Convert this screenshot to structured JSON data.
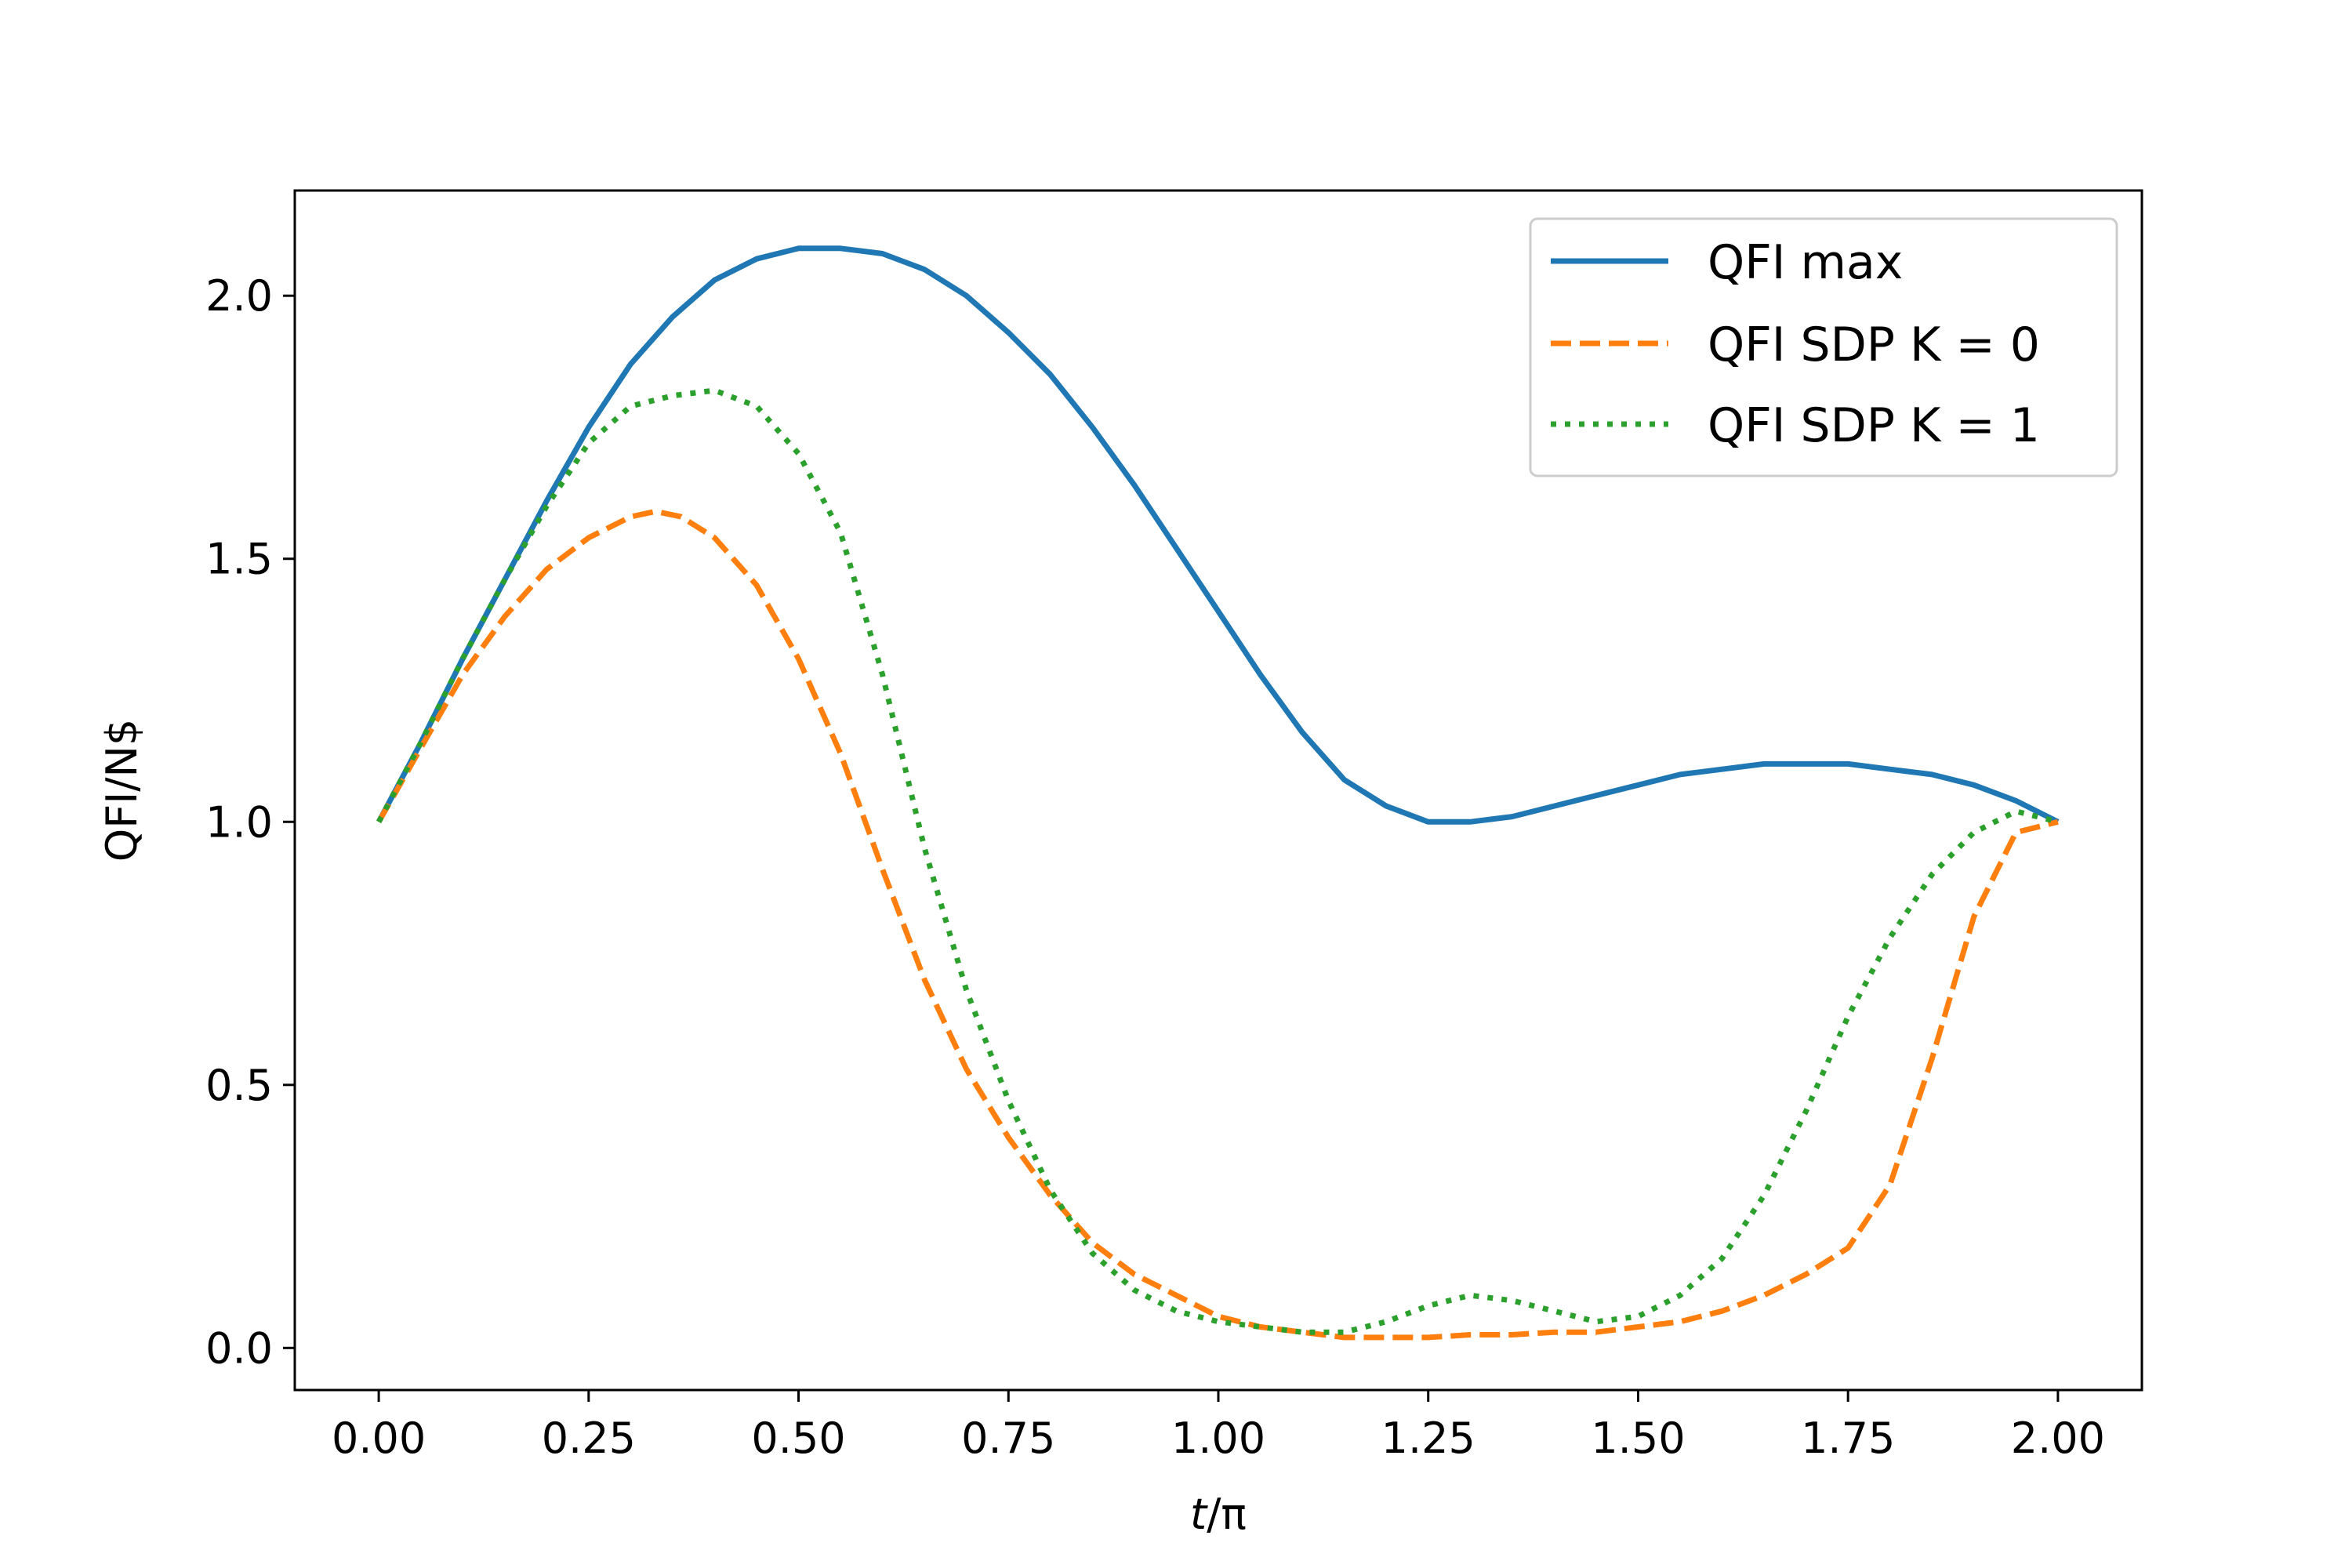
{
  "chart_data": {
    "type": "line",
    "title": "",
    "xlabel_var": "t",
    "xlabel_rest": "/π",
    "ylabel": "QFI/N$",
    "xlim": [
      -0.1,
      2.1
    ],
    "ylim": [
      -0.08,
      2.2
    ],
    "xticks": [
      0.0,
      0.25,
      0.5,
      0.75,
      1.0,
      1.25,
      1.5,
      1.75,
      2.0
    ],
    "xtick_labels": [
      "0.00",
      "0.25",
      "0.50",
      "0.75",
      "1.00",
      "1.25",
      "1.50",
      "1.75",
      "2.00"
    ],
    "yticks": [
      0.0,
      0.5,
      1.0,
      1.5,
      2.0
    ],
    "ytick_labels": [
      "0.0",
      "0.5",
      "1.0",
      "1.5",
      "2.0"
    ],
    "legend_position": "top-right",
    "series": [
      {
        "name": "QFI max",
        "color": "#1f77b4",
        "style": "solid",
        "x": [
          0.0,
          0.05,
          0.1,
          0.15,
          0.2,
          0.25,
          0.3,
          0.35,
          0.4,
          0.45,
          0.5,
          0.55,
          0.6,
          0.65,
          0.7,
          0.75,
          0.8,
          0.85,
          0.9,
          0.95,
          1.0,
          1.05,
          1.1,
          1.15,
          1.2,
          1.25,
          1.3,
          1.35,
          1.4,
          1.45,
          1.5,
          1.55,
          1.6,
          1.65,
          1.7,
          1.75,
          1.8,
          1.85,
          1.9,
          1.95,
          2.0
        ],
        "values": [
          1.0,
          1.15,
          1.31,
          1.46,
          1.61,
          1.75,
          1.87,
          1.96,
          2.03,
          2.07,
          2.09,
          2.09,
          2.08,
          2.05,
          2.0,
          1.93,
          1.85,
          1.75,
          1.64,
          1.52,
          1.4,
          1.28,
          1.17,
          1.08,
          1.03,
          1.0,
          1.0,
          1.01,
          1.03,
          1.05,
          1.07,
          1.09,
          1.1,
          1.11,
          1.11,
          1.11,
          1.1,
          1.09,
          1.07,
          1.04,
          1.0
        ]
      },
      {
        "name": "QFI SDP K = 0",
        "color": "#ff7f0e",
        "style": "dashed",
        "x": [
          0.0,
          0.05,
          0.1,
          0.15,
          0.2,
          0.25,
          0.3,
          0.33,
          0.36,
          0.4,
          0.45,
          0.5,
          0.55,
          0.6,
          0.65,
          0.7,
          0.75,
          0.8,
          0.85,
          0.9,
          0.95,
          1.0,
          1.05,
          1.1,
          1.15,
          1.2,
          1.25,
          1.3,
          1.35,
          1.4,
          1.45,
          1.5,
          1.55,
          1.6,
          1.65,
          1.7,
          1.75,
          1.8,
          1.85,
          1.9,
          1.95,
          2.0
        ],
        "values": [
          1.0,
          1.14,
          1.28,
          1.39,
          1.48,
          1.54,
          1.58,
          1.59,
          1.58,
          1.54,
          1.45,
          1.31,
          1.13,
          0.91,
          0.7,
          0.53,
          0.4,
          0.29,
          0.2,
          0.14,
          0.1,
          0.06,
          0.04,
          0.03,
          0.02,
          0.02,
          0.02,
          0.025,
          0.025,
          0.03,
          0.03,
          0.04,
          0.05,
          0.07,
          0.1,
          0.14,
          0.19,
          0.31,
          0.55,
          0.82,
          0.98,
          1.0
        ]
      },
      {
        "name": "QFI SDP K = 1",
        "color": "#2ca02c",
        "style": "dotted",
        "x": [
          0.0,
          0.05,
          0.1,
          0.15,
          0.2,
          0.25,
          0.3,
          0.35,
          0.4,
          0.45,
          0.5,
          0.55,
          0.6,
          0.65,
          0.7,
          0.75,
          0.8,
          0.85,
          0.9,
          0.95,
          1.0,
          1.05,
          1.1,
          1.15,
          1.2,
          1.25,
          1.3,
          1.35,
          1.4,
          1.45,
          1.5,
          1.55,
          1.6,
          1.65,
          1.7,
          1.75,
          1.8,
          1.85,
          1.9,
          1.95,
          2.0
        ],
        "values": [
          1.0,
          1.15,
          1.31,
          1.46,
          1.6,
          1.72,
          1.79,
          1.81,
          1.82,
          1.79,
          1.7,
          1.55,
          1.28,
          0.95,
          0.68,
          0.47,
          0.3,
          0.18,
          0.11,
          0.07,
          0.05,
          0.04,
          0.03,
          0.03,
          0.05,
          0.08,
          0.1,
          0.09,
          0.07,
          0.05,
          0.06,
          0.1,
          0.17,
          0.29,
          0.45,
          0.63,
          0.78,
          0.9,
          0.98,
          1.02,
          1.0
        ]
      }
    ]
  }
}
